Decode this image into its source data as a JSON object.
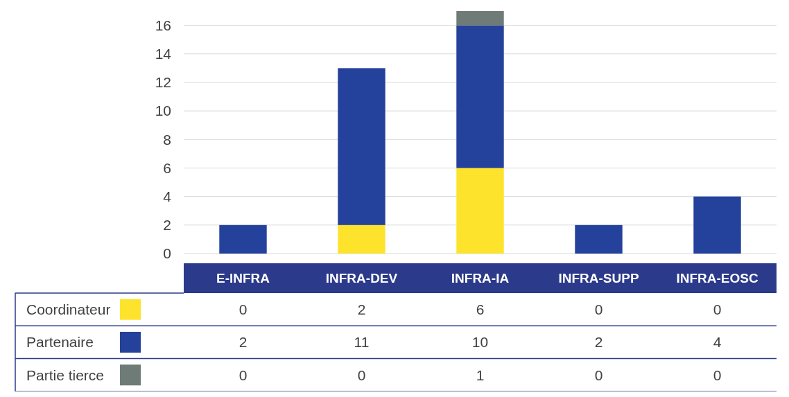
{
  "chart_data": {
    "type": "bar",
    "stacked": true,
    "categories": [
      "E-INFRA",
      "INFRA-DEV",
      "INFRA-IA",
      "INFRA-SUPP",
      "INFRA-EOSC"
    ],
    "series": [
      {
        "name": "Coordinateur",
        "color": "#fde32b",
        "values": [
          0,
          2,
          6,
          0,
          0
        ]
      },
      {
        "name": "Partenaire",
        "color": "#24429b",
        "values": [
          2,
          11,
          10,
          2,
          4
        ]
      },
      {
        "name": "Partie tierce",
        "color": "#6f7b76",
        "values": [
          0,
          0,
          1,
          0,
          0
        ]
      }
    ],
    "ylim": [
      0,
      17
    ],
    "yticks": [
      0,
      2,
      4,
      6,
      8,
      10,
      12,
      14,
      16
    ],
    "grid": "y",
    "legend": "bottom",
    "data_labels": true
  }
}
